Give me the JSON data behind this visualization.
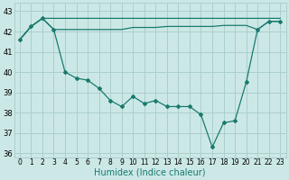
{
  "xlabel": "Humidex (Indice chaleur)",
  "background_color": "#cce8e6",
  "grid_color": "#aacfcc",
  "line_color": "#1a7a6e",
  "xlim": [
    -0.5,
    23.5
  ],
  "ylim": [
    35.8,
    43.4
  ],
  "yticks": [
    36,
    37,
    38,
    39,
    40,
    41,
    42,
    43
  ],
  "xticks": [
    0,
    1,
    2,
    3,
    4,
    5,
    6,
    7,
    8,
    9,
    10,
    11,
    12,
    13,
    14,
    15,
    16,
    17,
    18,
    19,
    20,
    21,
    22,
    23
  ],
  "series1": [
    41.6,
    42.25,
    42.65,
    42.65,
    42.65,
    42.65,
    42.65,
    42.65,
    42.65,
    42.65,
    42.65,
    42.65,
    42.65,
    42.65,
    42.65,
    42.65,
    42.65,
    42.65,
    42.65,
    42.65,
    42.65,
    42.65,
    42.65,
    42.65
  ],
  "series2": [
    41.6,
    42.25,
    42.65,
    42.1,
    42.1,
    42.1,
    42.1,
    42.1,
    42.1,
    42.1,
    42.2,
    42.2,
    42.2,
    42.25,
    42.25,
    42.25,
    42.25,
    42.25,
    42.3,
    42.3,
    42.3,
    42.1,
    42.5,
    42.5
  ],
  "series3": [
    41.6,
    42.25,
    42.65,
    42.1,
    40.0,
    39.7,
    39.6,
    39.2,
    38.6,
    38.3,
    38.8,
    38.45,
    38.6,
    38.3,
    38.3,
    38.3,
    37.9,
    36.3,
    37.5,
    37.6,
    39.5,
    42.1,
    42.5,
    42.5
  ]
}
